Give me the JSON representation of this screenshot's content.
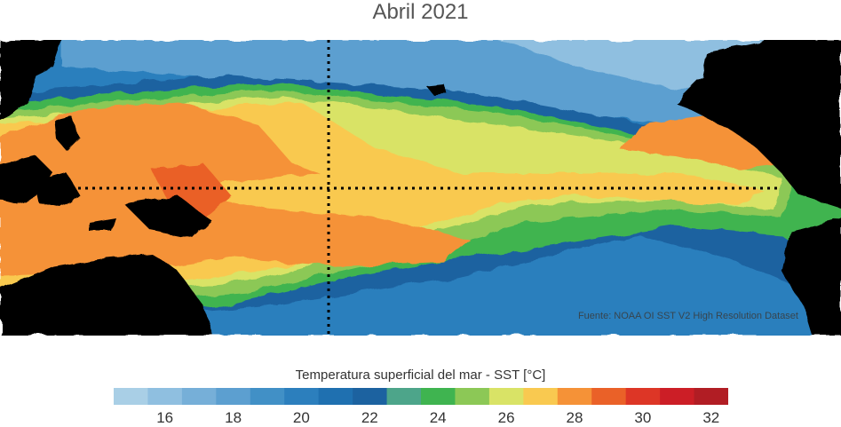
{
  "title": "Abril 2021",
  "source_text": "Fuente: NOAA OI SST V2 High Resolution Dataset",
  "colorbar": {
    "label": "Temperatura superficial del mar - SST  [°C]",
    "min": 15,
    "max": 33,
    "colors": [
      "#a9cfe6",
      "#8fbfe0",
      "#76afd8",
      "#5c9fd0",
      "#4190c6",
      "#2c7fbd",
      "#1f70b0",
      "#1c62a0",
      "#4da58a",
      "#3fb450",
      "#8cc856",
      "#d9e366",
      "#f9c950",
      "#f59237",
      "#ea6128",
      "#dd3626",
      "#cc1e26",
      "#b11d24"
    ],
    "ticks": [
      "16",
      "18",
      "20",
      "22",
      "24",
      "26",
      "28",
      "30",
      "32"
    ]
  },
  "map": {
    "region": "Pacífico tropical",
    "dateline_marker": "dotted",
    "equator_marker": "dotted"
  }
}
